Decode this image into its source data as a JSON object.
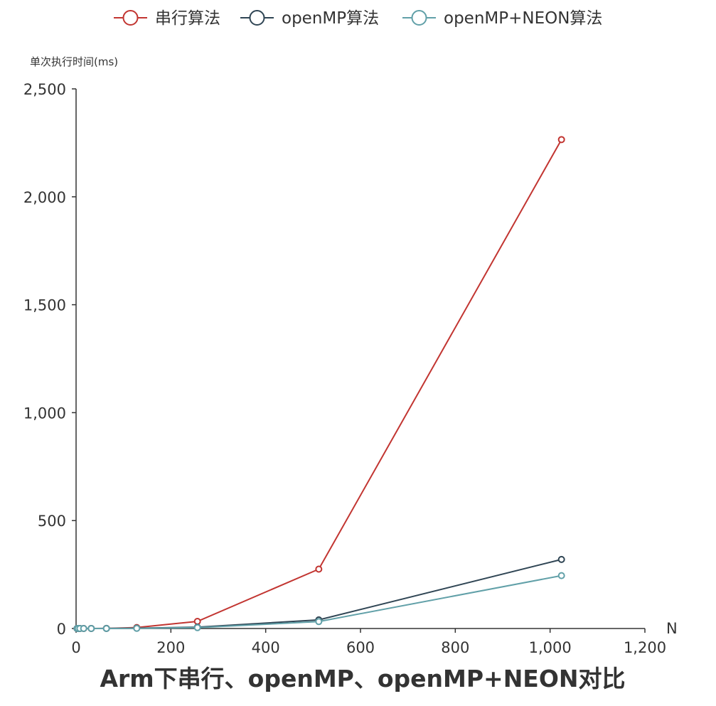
{
  "chart_data": {
    "type": "line",
    "title": "Arm下串行、openMP、openMP+NEON对比",
    "xlabel": "N",
    "ylabel": "单次执行时间(ms)",
    "xlim": [
      0,
      1200
    ],
    "ylim": [
      0,
      2500
    ],
    "x_ticks": [
      "0",
      "200",
      "400",
      "600",
      "800",
      "1,000",
      "1,200"
    ],
    "y_ticks": [
      "0",
      "500",
      "1,000",
      "1,500",
      "2,000",
      "2,500"
    ],
    "x_tick_values": [
      0,
      200,
      400,
      600,
      800,
      1000,
      1200
    ],
    "y_tick_values": [
      0,
      500,
      1000,
      1500,
      2000,
      2500
    ],
    "grid": false,
    "legend_position": "top-center",
    "series": [
      {
        "name": "串行算法",
        "color": "#c23531",
        "x": [
          2,
          4,
          8,
          16,
          32,
          64,
          128,
          256,
          512,
          1024
        ],
        "y": [
          0,
          0,
          0,
          0,
          0.1,
          0.6,
          4.5,
          33,
          275,
          2265
        ]
      },
      {
        "name": "openMP算法",
        "color": "#2f4554",
        "x": [
          2,
          4,
          8,
          16,
          32,
          64,
          128,
          256,
          512,
          1024
        ],
        "y": [
          0,
          0,
          0,
          0,
          0.1,
          0.3,
          1.5,
          6,
          40,
          320
        ]
      },
      {
        "name": "openMP+NEON算法",
        "color": "#61a0a8",
        "x": [
          2,
          4,
          8,
          16,
          32,
          64,
          128,
          256,
          512,
          1024
        ],
        "y": [
          0,
          0,
          0,
          0,
          0.1,
          0.2,
          1,
          4,
          32,
          245
        ]
      }
    ]
  }
}
